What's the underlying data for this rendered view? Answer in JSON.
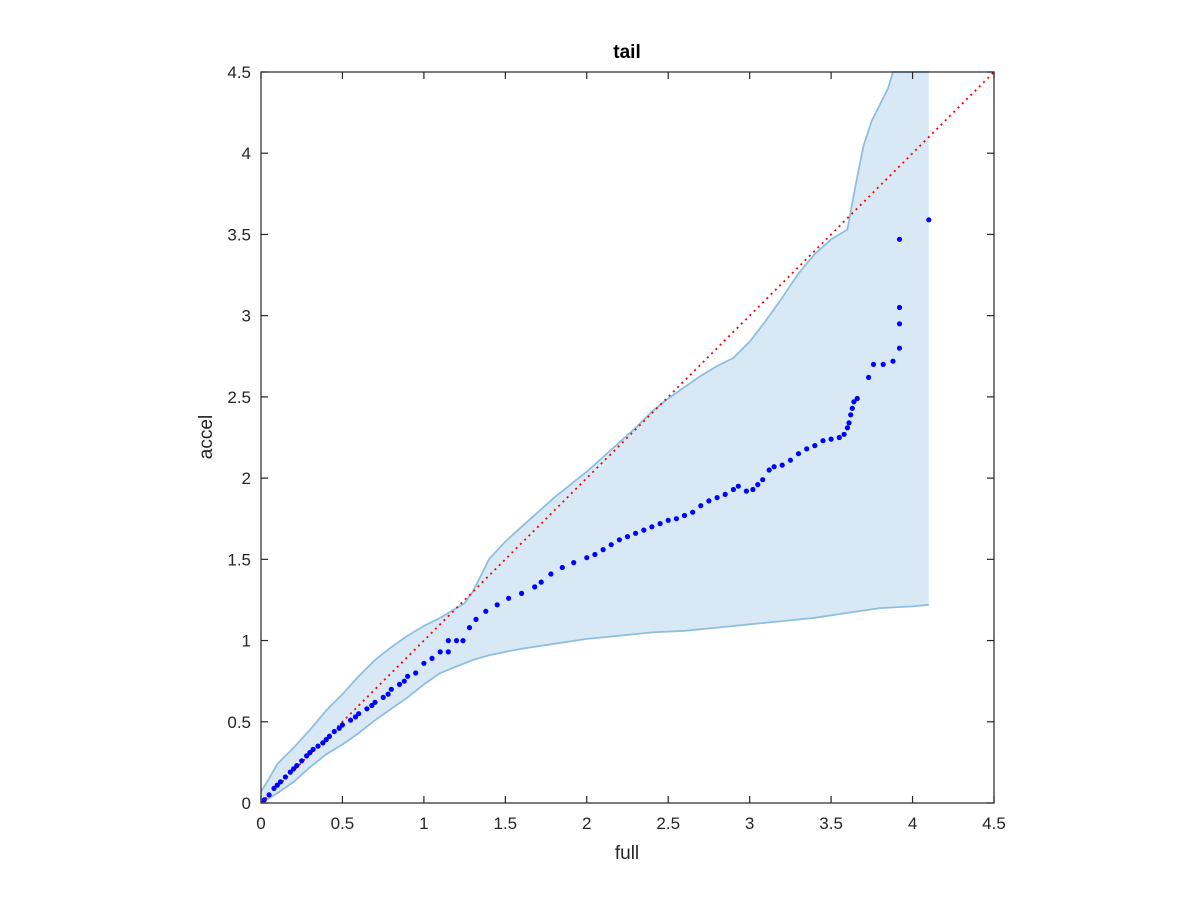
{
  "chart_data": {
    "type": "scatter",
    "title": "tail",
    "xlabel": "full",
    "ylabel": "accel",
    "xlim": [
      0,
      4.5
    ],
    "ylim": [
      0,
      4.5
    ],
    "xticks": [
      0,
      0.5,
      1,
      1.5,
      2,
      2.5,
      3,
      3.5,
      4,
      4.5
    ],
    "yticks": [
      0,
      0.5,
      1,
      1.5,
      2,
      2.5,
      3,
      3.5,
      4,
      4.5
    ],
    "xtick_labels": [
      "0",
      "0.5",
      "1",
      "1.5",
      "2",
      "2.5",
      "3",
      "3.5",
      "4",
      "4.5"
    ],
    "ytick_labels": [
      "0",
      "0.5",
      "1",
      "1.5",
      "2",
      "2.5",
      "3",
      "3.5",
      "4",
      "4.5"
    ],
    "grid": false,
    "colors": {
      "points": "#0000ff",
      "reference_line": "#ff0000",
      "band_fill": "#d8e9f5",
      "band_edge": "#8fbfdf",
      "axes": "#262626"
    },
    "reference_line": {
      "style": "dotted",
      "x": [
        0,
        4.5
      ],
      "y": [
        0,
        4.5
      ]
    },
    "confidence_band": {
      "upper": [
        [
          0.0,
          0.07
        ],
        [
          0.05,
          0.15
        ],
        [
          0.1,
          0.24
        ],
        [
          0.2,
          0.34
        ],
        [
          0.3,
          0.45
        ],
        [
          0.4,
          0.57
        ],
        [
          0.5,
          0.67
        ],
        [
          0.6,
          0.78
        ],
        [
          0.7,
          0.88
        ],
        [
          0.8,
          0.96
        ],
        [
          0.9,
          1.03
        ],
        [
          1.0,
          1.09
        ],
        [
          1.1,
          1.14
        ],
        [
          1.2,
          1.2
        ],
        [
          1.25,
          1.23
        ],
        [
          1.3,
          1.3
        ],
        [
          1.35,
          1.4
        ],
        [
          1.4,
          1.5
        ],
        [
          1.5,
          1.61
        ],
        [
          1.6,
          1.7
        ],
        [
          1.7,
          1.79
        ],
        [
          1.8,
          1.88
        ],
        [
          1.9,
          1.96
        ],
        [
          2.0,
          2.04
        ],
        [
          2.1,
          2.13
        ],
        [
          2.2,
          2.22
        ],
        [
          2.3,
          2.31
        ],
        [
          2.4,
          2.41
        ],
        [
          2.5,
          2.49
        ],
        [
          2.6,
          2.56
        ],
        [
          2.7,
          2.63
        ],
        [
          2.8,
          2.69
        ],
        [
          2.9,
          2.74
        ],
        [
          3.0,
          2.84
        ],
        [
          3.1,
          2.97
        ],
        [
          3.2,
          3.11
        ],
        [
          3.3,
          3.26
        ],
        [
          3.4,
          3.38
        ],
        [
          3.5,
          3.47
        ],
        [
          3.55,
          3.5
        ],
        [
          3.6,
          3.53
        ],
        [
          3.65,
          3.8
        ],
        [
          3.7,
          4.05
        ],
        [
          3.75,
          4.2
        ],
        [
          3.8,
          4.3
        ],
        [
          3.85,
          4.4
        ],
        [
          3.88,
          4.5
        ],
        [
          4.1,
          4.5
        ]
      ],
      "lower": [
        [
          0.0,
          0.0
        ],
        [
          0.1,
          0.06
        ],
        [
          0.2,
          0.13
        ],
        [
          0.3,
          0.22
        ],
        [
          0.4,
          0.3
        ],
        [
          0.5,
          0.36
        ],
        [
          0.6,
          0.43
        ],
        [
          0.7,
          0.51
        ],
        [
          0.8,
          0.58
        ],
        [
          0.9,
          0.65
        ],
        [
          1.0,
          0.73
        ],
        [
          1.1,
          0.8
        ],
        [
          1.2,
          0.84
        ],
        [
          1.3,
          0.88
        ],
        [
          1.4,
          0.91
        ],
        [
          1.5,
          0.93
        ],
        [
          1.6,
          0.95
        ],
        [
          1.8,
          0.98
        ],
        [
          2.0,
          1.01
        ],
        [
          2.2,
          1.03
        ],
        [
          2.4,
          1.05
        ],
        [
          2.6,
          1.06
        ],
        [
          2.8,
          1.08
        ],
        [
          3.0,
          1.1
        ],
        [
          3.2,
          1.12
        ],
        [
          3.4,
          1.14
        ],
        [
          3.6,
          1.17
        ],
        [
          3.8,
          1.2
        ],
        [
          4.0,
          1.21
        ],
        [
          4.1,
          1.22
        ]
      ]
    },
    "series": [
      {
        "style": "markers",
        "points": [
          [
            0.02,
            0.02
          ],
          [
            0.05,
            0.05
          ],
          [
            0.08,
            0.09
          ],
          [
            0.1,
            0.11
          ],
          [
            0.12,
            0.13
          ],
          [
            0.15,
            0.16
          ],
          [
            0.18,
            0.19
          ],
          [
            0.2,
            0.21
          ],
          [
            0.22,
            0.23
          ],
          [
            0.25,
            0.26
          ],
          [
            0.28,
            0.29
          ],
          [
            0.3,
            0.31
          ],
          [
            0.32,
            0.33
          ],
          [
            0.35,
            0.35
          ],
          [
            0.38,
            0.37
          ],
          [
            0.4,
            0.39
          ],
          [
            0.42,
            0.41
          ],
          [
            0.45,
            0.44
          ],
          [
            0.48,
            0.46
          ],
          [
            0.5,
            0.48
          ],
          [
            0.55,
            0.51
          ],
          [
            0.58,
            0.53
          ],
          [
            0.6,
            0.55
          ],
          [
            0.65,
            0.58
          ],
          [
            0.68,
            0.6
          ],
          [
            0.7,
            0.62
          ],
          [
            0.75,
            0.65
          ],
          [
            0.78,
            0.67
          ],
          [
            0.8,
            0.7
          ],
          [
            0.85,
            0.73
          ],
          [
            0.88,
            0.75
          ],
          [
            0.9,
            0.78
          ],
          [
            0.95,
            0.8
          ],
          [
            1.0,
            0.86
          ],
          [
            1.05,
            0.89
          ],
          [
            1.1,
            0.93
          ],
          [
            1.15,
            0.93
          ],
          [
            1.15,
            1.0
          ],
          [
            1.2,
            1.0
          ],
          [
            1.24,
            1.0
          ],
          [
            1.28,
            1.08
          ],
          [
            1.32,
            1.13
          ],
          [
            1.38,
            1.18
          ],
          [
            1.45,
            1.22
          ],
          [
            1.52,
            1.26
          ],
          [
            1.6,
            1.29
          ],
          [
            1.68,
            1.33
          ],
          [
            1.72,
            1.36
          ],
          [
            1.78,
            1.41
          ],
          [
            1.85,
            1.45
          ],
          [
            1.92,
            1.48
          ],
          [
            2.0,
            1.51
          ],
          [
            2.05,
            1.53
          ],
          [
            2.1,
            1.56
          ],
          [
            2.15,
            1.59
          ],
          [
            2.2,
            1.62
          ],
          [
            2.25,
            1.64
          ],
          [
            2.3,
            1.66
          ],
          [
            2.35,
            1.68
          ],
          [
            2.4,
            1.7
          ],
          [
            2.45,
            1.72
          ],
          [
            2.5,
            1.74
          ],
          [
            2.55,
            1.75
          ],
          [
            2.6,
            1.77
          ],
          [
            2.65,
            1.79
          ],
          [
            2.7,
            1.83
          ],
          [
            2.75,
            1.86
          ],
          [
            2.8,
            1.88
          ],
          [
            2.85,
            1.9
          ],
          [
            2.9,
            1.93
          ],
          [
            2.93,
            1.95
          ],
          [
            2.98,
            1.92
          ],
          [
            3.02,
            1.93
          ],
          [
            3.05,
            1.96
          ],
          [
            3.08,
            1.99
          ],
          [
            3.12,
            2.05
          ],
          [
            3.15,
            2.07
          ],
          [
            3.2,
            2.08
          ],
          [
            3.25,
            2.11
          ],
          [
            3.3,
            2.15
          ],
          [
            3.35,
            2.18
          ],
          [
            3.4,
            2.2
          ],
          [
            3.45,
            2.23
          ],
          [
            3.5,
            2.24
          ],
          [
            3.55,
            2.25
          ],
          [
            3.58,
            2.27
          ],
          [
            3.6,
            2.31
          ],
          [
            3.61,
            2.34
          ],
          [
            3.62,
            2.39
          ],
          [
            3.63,
            2.43
          ],
          [
            3.64,
            2.47
          ],
          [
            3.66,
            2.49
          ],
          [
            3.73,
            2.62
          ],
          [
            3.76,
            2.7
          ],
          [
            3.82,
            2.7
          ],
          [
            3.88,
            2.72
          ],
          [
            3.92,
            2.8
          ],
          [
            3.92,
            2.95
          ],
          [
            3.92,
            3.05
          ],
          [
            3.92,
            3.47
          ],
          [
            4.1,
            3.59
          ]
        ]
      }
    ]
  }
}
